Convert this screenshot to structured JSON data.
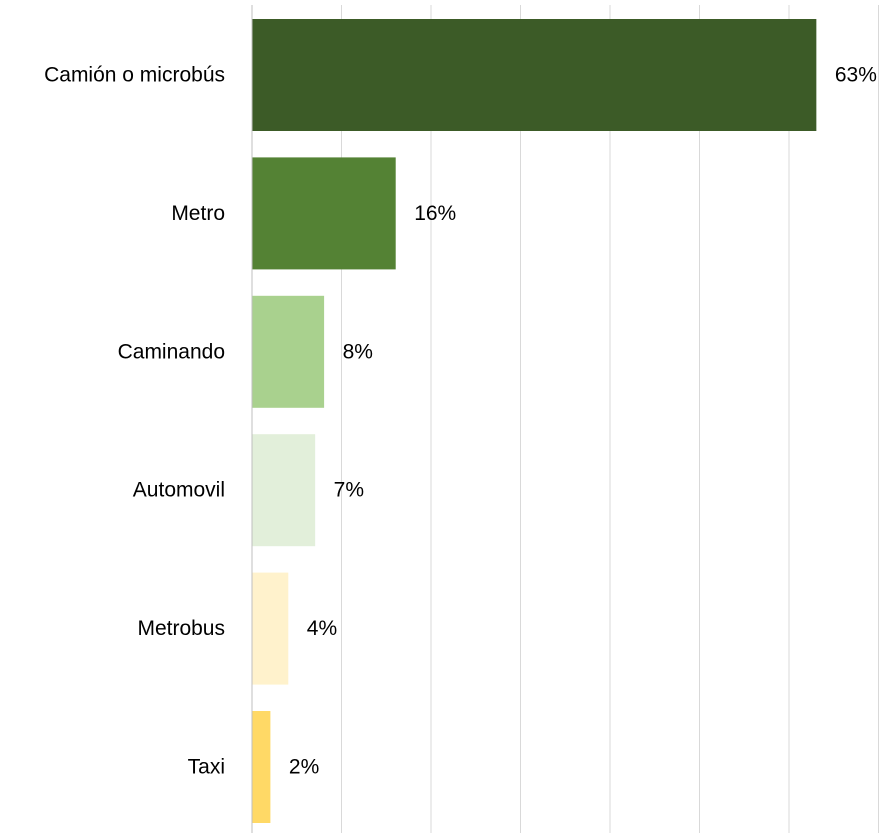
{
  "chart_data": {
    "type": "bar",
    "orientation": "horizontal",
    "categories": [
      "Camión o microbús",
      "Metro",
      "Caminando",
      "Automovil",
      "Metrobus",
      "Taxi"
    ],
    "values": [
      63,
      16,
      8,
      7,
      4,
      2
    ],
    "value_labels": [
      "63%",
      "16%",
      "8%",
      "7%",
      "4%",
      "2%"
    ],
    "bar_colors": [
      "#3c5b27",
      "#548234",
      "#a9d18e",
      "#e2efda",
      "#fff2cc",
      "#ffd966"
    ],
    "xlim": [
      0,
      70
    ],
    "grid": true,
    "grid_color": "#d9d9d9",
    "title": "",
    "xlabel": "",
    "ylabel": ""
  }
}
